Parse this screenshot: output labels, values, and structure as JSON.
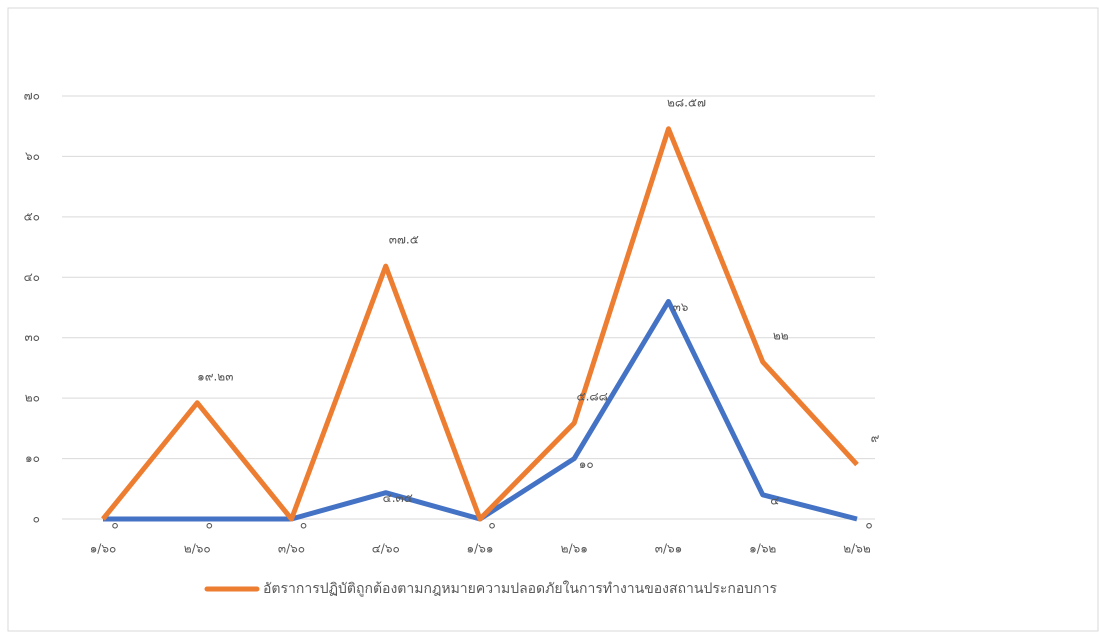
{
  "chart_data": {
    "type": "line",
    "stacked": true,
    "categories": [
      "๑/๖๐",
      "๒/๖๐",
      "๓/๖๐",
      "๔/๖๐",
      "๑/๖๑",
      "๒/๖๑",
      "๓/๖๑",
      "๑/๖๒",
      "๒/๖๒"
    ],
    "series": [
      {
        "color": "#4472c4",
        "values": [
          0,
          0,
          0,
          4.35,
          0,
          10,
          36,
          4,
          0
        ],
        "value_labels": [
          "๐",
          "๐",
          "๐",
          "๔.๓๕",
          "๐",
          "๑๐",
          "๓๖",
          "๔",
          "๐"
        ]
      },
      {
        "name": "อัตราการปฏิบัติถูกต้องตามกฎหมายความปลอดภัยในการทำงานของสถานประกอบการ",
        "color": "#ed7d31",
        "values": [
          0,
          19.23,
          0,
          37.5,
          0,
          5.88,
          28.57,
          22,
          9
        ],
        "value_labels": [
          null,
          "๑๙.๒๓",
          null,
          "๓๗.๕",
          null,
          "๕.๘๘",
          "๒๘.๕๗",
          "๒๒",
          "๙"
        ]
      }
    ],
    "ylim": [
      0,
      70
    ],
    "yticks": [
      {
        "value": 0,
        "label": "๐"
      },
      {
        "value": 10,
        "label": "๑๐"
      },
      {
        "value": 20,
        "label": "๒๐"
      },
      {
        "value": 30,
        "label": "๓๐"
      },
      {
        "value": 40,
        "label": "๔๐"
      },
      {
        "value": 50,
        "label": "๕๐"
      },
      {
        "value": 60,
        "label": "๖๐"
      },
      {
        "value": 70,
        "label": "๗๐"
      }
    ],
    "grid": true,
    "legend": "bottom"
  }
}
